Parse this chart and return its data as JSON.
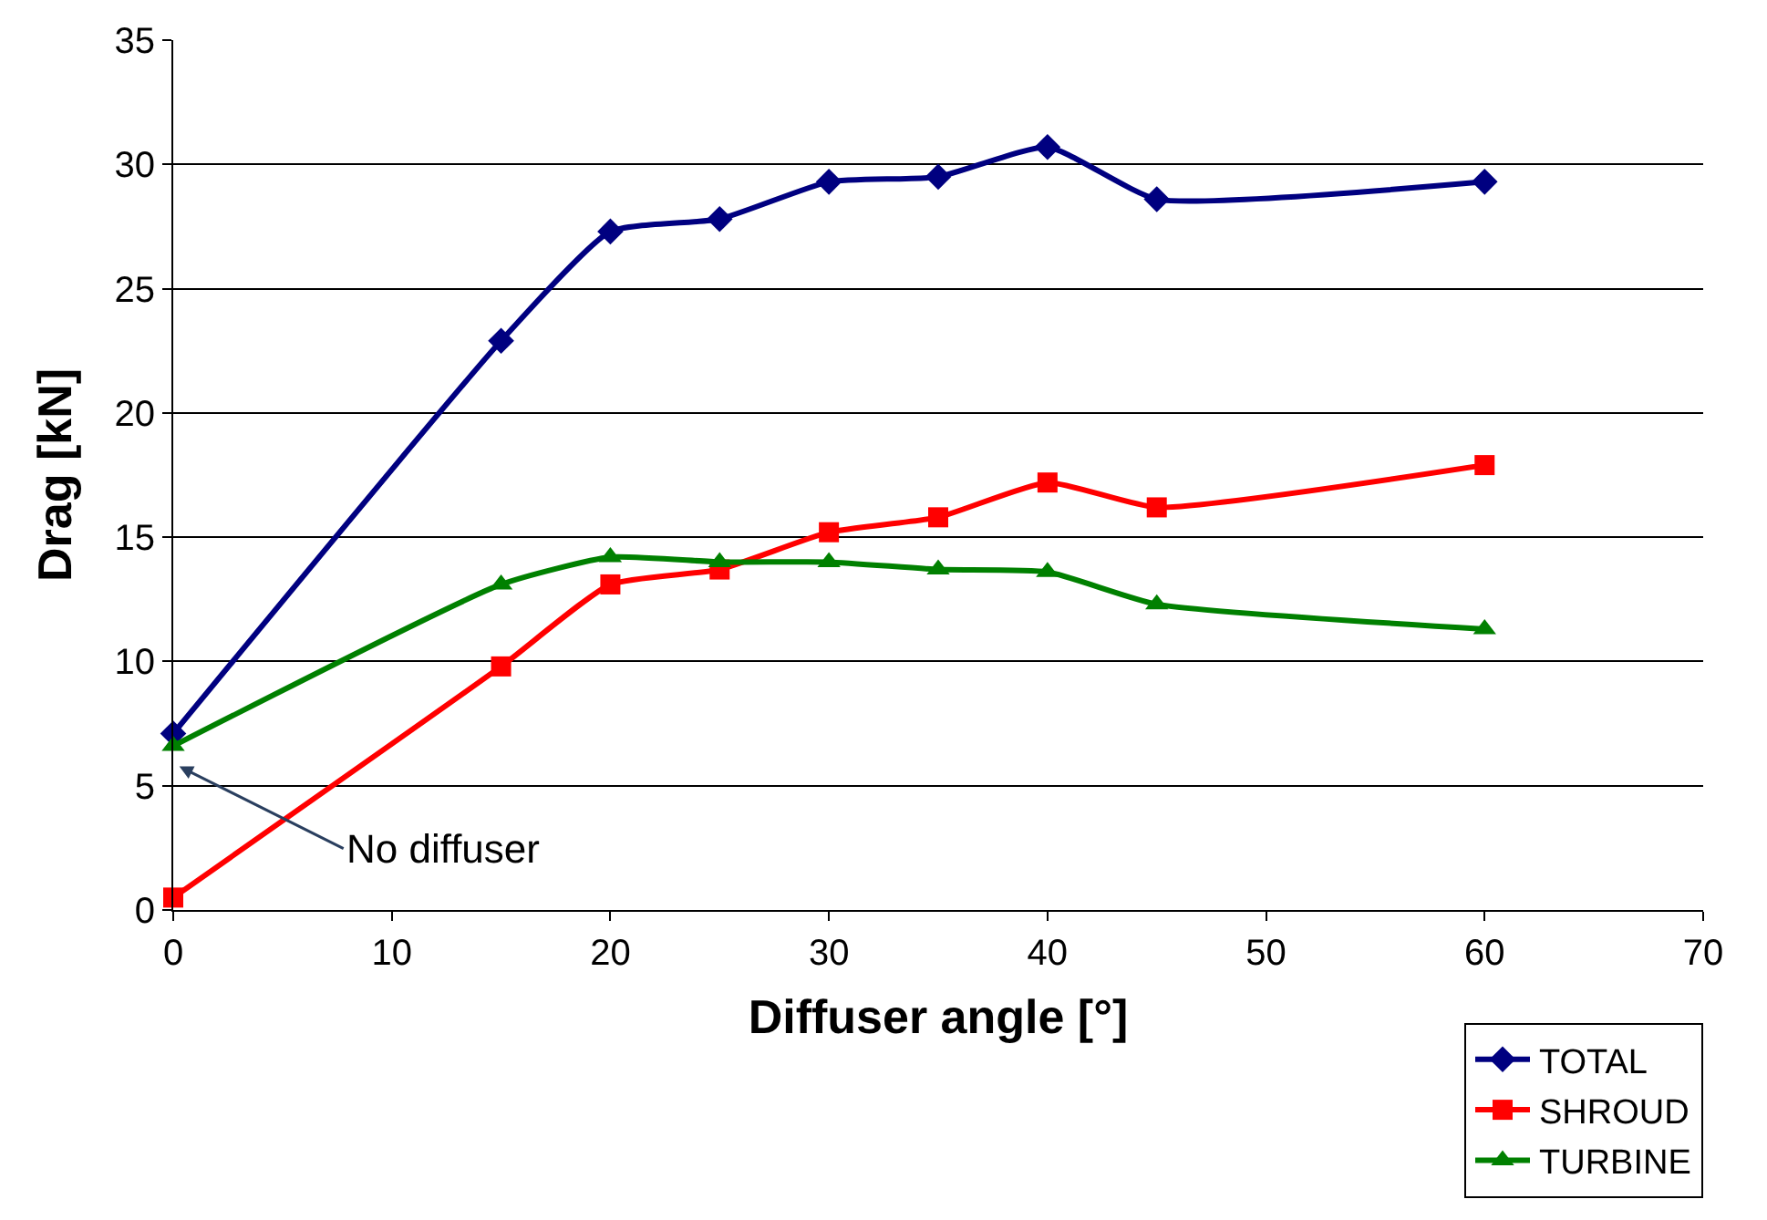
{
  "chart_data": {
    "type": "line",
    "xlabel": "Diffuser angle [°]",
    "ylabel": "Drag [kN]",
    "x": [
      0,
      15,
      20,
      25,
      30,
      35,
      40,
      45,
      60
    ],
    "series": [
      {
        "name": "TOTAL",
        "color": "#000080",
        "marker": "diamond",
        "values": [
          7.1,
          22.9,
          27.3,
          27.8,
          29.3,
          29.5,
          30.7,
          28.6,
          29.3
        ]
      },
      {
        "name": "SHROUD",
        "color": "#ff0000",
        "marker": "square",
        "values": [
          0.5,
          9.8,
          13.1,
          13.7,
          15.2,
          15.8,
          17.2,
          16.2,
          17.9
        ]
      },
      {
        "name": "TURBINE",
        "color": "#008000",
        "marker": "triangle",
        "values": [
          6.6,
          13.1,
          14.2,
          14.0,
          14.0,
          13.7,
          13.6,
          12.3,
          11.3
        ]
      }
    ],
    "xlim": [
      0,
      70
    ],
    "xticks": [
      0,
      10,
      20,
      30,
      40,
      50,
      60,
      70
    ],
    "ylim": [
      0,
      35
    ],
    "yticks": [
      0,
      5,
      10,
      15,
      20,
      25,
      30,
      35
    ],
    "grid": "y",
    "legend": "bottom right",
    "line_style": "solid",
    "annotations": [
      "No diffuser"
    ]
  }
}
